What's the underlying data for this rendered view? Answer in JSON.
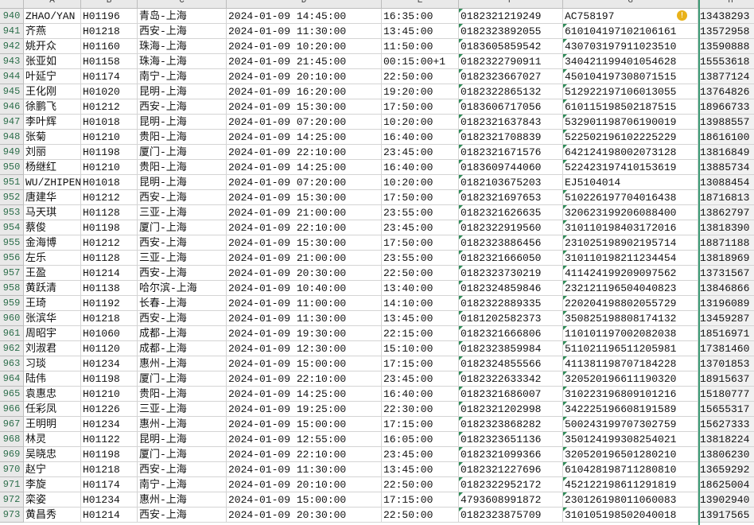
{
  "columns": [
    "A",
    "B",
    "C",
    "D",
    "E",
    "F",
    "G",
    "H"
  ],
  "rows": [
    {
      "row_number": 940,
      "cells": [
        "ZHAO/YAN",
        "H01196",
        "青岛-上海",
        "2024-01-09 14:45:00",
        "16:35:00",
        "0182321219249",
        "AC758197",
        "13438293"
      ]
    },
    {
      "row_number": 941,
      "cells": [
        "齐燕",
        "H01218",
        "西安-上海",
        "2024-01-09 11:30:00",
        "13:45:00",
        "0182323892055",
        "610104197102106161",
        "13572958"
      ]
    },
    {
      "row_number": 942,
      "cells": [
        "姚开众",
        "H01160",
        "珠海-上海",
        "2024-01-09 10:20:00",
        "11:50:00",
        "0183605859542",
        "430703197911023510",
        "13590888"
      ]
    },
    {
      "row_number": 943,
      "cells": [
        "张亚如",
        "H01158",
        "珠海-上海",
        "2024-01-09 21:45:00",
        "00:15:00+1",
        "0182322790911",
        "340421199401054628",
        "15553618"
      ]
    },
    {
      "row_number": 944,
      "cells": [
        "叶延宁",
        "H01174",
        "南宁-上海",
        "2024-01-09 20:10:00",
        "22:50:00",
        "0182323667027",
        "450104197308071515",
        "13877124"
      ]
    },
    {
      "row_number": 945,
      "cells": [
        "王化刚",
        "H01020",
        "昆明-上海",
        "2024-01-09 16:20:00",
        "19:20:00",
        "0182322865132",
        "512922197106013055",
        "13764826"
      ]
    },
    {
      "row_number": 946,
      "cells": [
        "徐鹏飞",
        "H01212",
        "西安-上海",
        "2024-01-09 15:30:00",
        "17:50:00",
        "0183606717056",
        "610115198502187515",
        "18966733"
      ]
    },
    {
      "row_number": 947,
      "cells": [
        "李叶辉",
        "H01018",
        "昆明-上海",
        "2024-01-09 07:20:00",
        "10:20:00",
        "0182321637843",
        "532901198706190019",
        "13988557"
      ]
    },
    {
      "row_number": 948,
      "cells": [
        "张菊",
        "H01210",
        "贵阳-上海",
        "2024-01-09 14:25:00",
        "16:40:00",
        "0182321708839",
        "522502196102225229",
        "18616100"
      ]
    },
    {
      "row_number": 949,
      "cells": [
        "刘丽",
        "H01198",
        "厦门-上海",
        "2024-01-09 22:10:00",
        "23:45:00",
        "0182321671576",
        "642124198002073128",
        "13816849"
      ]
    },
    {
      "row_number": 950,
      "cells": [
        "杨继红",
        "H01210",
        "贵阳-上海",
        "2024-01-09 14:25:00",
        "16:40:00",
        "0183609744060",
        "522423197410153619",
        "13885734"
      ]
    },
    {
      "row_number": 951,
      "cells": [
        "WU/ZHIPEN",
        "H01018",
        "昆明-上海",
        "2024-01-09 07:20:00",
        "10:20:00",
        "0182103675203",
        "EJ5104014",
        "13088454"
      ]
    },
    {
      "row_number": 952,
      "cells": [
        "唐建华",
        "H01212",
        "西安-上海",
        "2024-01-09 15:30:00",
        "17:50:00",
        "0182321697653",
        "510226197704016438",
        "18716813"
      ]
    },
    {
      "row_number": 953,
      "cells": [
        "马天琪",
        "H01128",
        "三亚-上海",
        "2024-01-09 21:00:00",
        "23:55:00",
        "0182321626635",
        "320623199206088400",
        "13862797"
      ]
    },
    {
      "row_number": 954,
      "cells": [
        "蔡俊",
        "H01198",
        "厦门-上海",
        "2024-01-09 22:10:00",
        "23:45:00",
        "0182322919560",
        "310110198403172016",
        "13818390"
      ]
    },
    {
      "row_number": 955,
      "cells": [
        "金海博",
        "H01212",
        "西安-上海",
        "2024-01-09 15:30:00",
        "17:50:00",
        "0182323886456",
        "231025198902195714",
        "18871188"
      ]
    },
    {
      "row_number": 956,
      "cells": [
        "左乐",
        "H01128",
        "三亚-上海",
        "2024-01-09 21:00:00",
        "23:55:00",
        "0182321666050",
        "310110198211234454",
        "13818969"
      ]
    },
    {
      "row_number": 957,
      "cells": [
        "王盈",
        "H01214",
        "西安-上海",
        "2024-01-09 20:30:00",
        "22:50:00",
        "0182323730219",
        "411424199209097562",
        "13731567"
      ]
    },
    {
      "row_number": 958,
      "cells": [
        "黄跃清",
        "H01138",
        "哈尔滨-上海",
        "2024-01-09 10:40:00",
        "13:40:00",
        "0182324859846",
        "232121196504040823",
        "13846866"
      ]
    },
    {
      "row_number": 959,
      "cells": [
        "王琦",
        "H01192",
        "长春-上海",
        "2024-01-09 11:00:00",
        "14:10:00",
        "0182322889335",
        "220204198802055729",
        "13196089"
      ]
    },
    {
      "row_number": 960,
      "cells": [
        "张滨华",
        "H01218",
        "西安-上海",
        "2024-01-09 11:30:00",
        "13:45:00",
        "0181202582373",
        "350825198808174132",
        "13459287"
      ]
    },
    {
      "row_number": 961,
      "cells": [
        "周昭宇",
        "H01060",
        "成都-上海",
        "2024-01-09 19:30:00",
        "22:15:00",
        "0182321666806",
        "110101197002082038",
        "18516971"
      ]
    },
    {
      "row_number": 962,
      "cells": [
        "刘淑君",
        "H01120",
        "成都-上海",
        "2024-01-09 12:30:00",
        "15:10:00",
        "0182323859984",
        "511021196511205981",
        "17381460"
      ]
    },
    {
      "row_number": 963,
      "cells": [
        "习琰",
        "H01234",
        "惠州-上海",
        "2024-01-09 15:00:00",
        "17:15:00",
        "0182324855566",
        "411381198707184228",
        "13701853"
      ]
    },
    {
      "row_number": 964,
      "cells": [
        "陆伟",
        "H01198",
        "厦门-上海",
        "2024-01-09 22:10:00",
        "23:45:00",
        "0182322633342",
        "320520196611190320",
        "18915637"
      ]
    },
    {
      "row_number": 965,
      "cells": [
        "袁惠忠",
        "H01210",
        "贵阳-上海",
        "2024-01-09 14:25:00",
        "16:40:00",
        "0182321686007",
        "310223196809101216",
        "15180777"
      ]
    },
    {
      "row_number": 966,
      "cells": [
        "任彩凤",
        "H01226",
        "三亚-上海",
        "2024-01-09 19:25:00",
        "22:30:00",
        "0182321202998",
        "342225196608191589",
        "15655317"
      ]
    },
    {
      "row_number": 967,
      "cells": [
        "王明明",
        "H01234",
        "惠州-上海",
        "2024-01-09 15:00:00",
        "17:15:00",
        "0182323868282",
        "500243199707302759",
        "15627333"
      ]
    },
    {
      "row_number": 968,
      "cells": [
        "林灵",
        "H01122",
        "昆明-上海",
        "2024-01-09 12:55:00",
        "16:05:00",
        "0182323651136",
        "350124199308254021",
        "13818224"
      ]
    },
    {
      "row_number": 969,
      "cells": [
        "吴晓忠",
        "H01198",
        "厦门-上海",
        "2024-01-09 22:10:00",
        "23:45:00",
        "0182321099366",
        "320520196501280210",
        "13806230"
      ]
    },
    {
      "row_number": 970,
      "cells": [
        "赵宁",
        "H01218",
        "西安-上海",
        "2024-01-09 11:30:00",
        "13:45:00",
        "0182321227696",
        "610428198711280810",
        "13659292"
      ]
    },
    {
      "row_number": 971,
      "cells": [
        "李旋",
        "H01174",
        "南宁-上海",
        "2024-01-09 20:10:00",
        "22:50:00",
        "0182322952172",
        "452122198611291819",
        "18625004"
      ]
    },
    {
      "row_number": 972,
      "cells": [
        "栾姿",
        "H01234",
        "惠州-上海",
        "2024-01-09 15:00:00",
        "17:15:00",
        "4793608991872",
        "230126198011060083",
        "13902940"
      ]
    },
    {
      "row_number": 973,
      "cells": [
        "黄昌秀",
        "H01214",
        "西安-上海",
        "2024-01-09 20:30:00",
        "22:50:00",
        "0182323875709",
        "310105198502040018",
        "13917565"
      ]
    }
  ]
}
